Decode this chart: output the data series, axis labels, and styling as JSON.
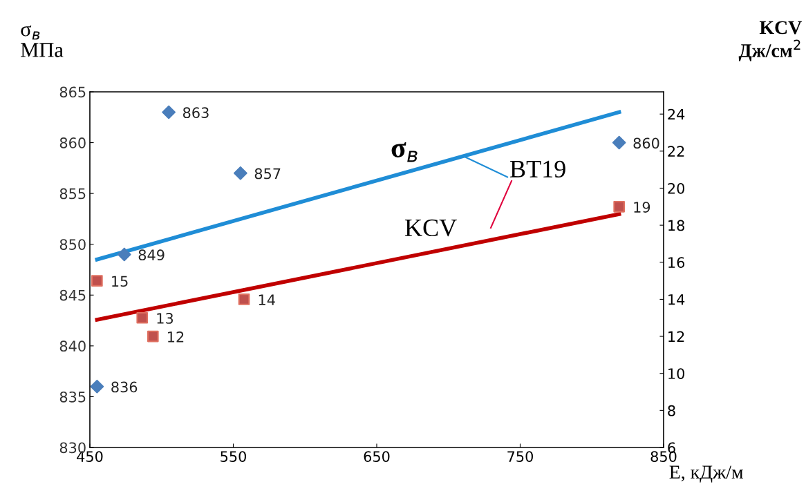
{
  "chart_data": {
    "type": "scatter",
    "xlabel": "E, кДж/м",
    "ylabel": "σ$_{в}$\nМПа",
    "y2label": "KCV\nДж/см$^{2}$",
    "xlim": [
      450,
      850
    ],
    "xticks": [
      450,
      550,
      650,
      750,
      850
    ],
    "ylim": [
      830,
      865
    ],
    "yticks": [
      830,
      835,
      840,
      845,
      850,
      855,
      860,
      865
    ],
    "y2lim": [
      6,
      25.2
    ],
    "y2ticks": [
      6,
      8,
      10,
      12,
      14,
      16,
      18,
      20,
      22,
      24
    ],
    "grid": false,
    "series": [
      {
        "marker": "diamond",
        "color": "#4a7ebb",
        "x": [
          455,
          474,
          505,
          555,
          819
        ],
        "values": [
          836,
          849,
          863,
          857,
          860
        ],
        "value_labels": [
          "836",
          "849",
          "863",
          "857",
          "860"
        ]
      },
      {
        "marker": "square",
        "color": "#c0504d",
        "axis": "y2",
        "x": [
          455,
          486.5,
          494,
          557.5,
          819
        ],
        "values": [
          15,
          13,
          12,
          14,
          19
        ],
        "value_labels": [
          "15",
          "13",
          "12",
          "14",
          "19"
        ]
      },
      {
        "type": "line",
        "marker": "none",
        "color": "#1f8dd6",
        "x": [
          455,
          819
        ],
        "values": [
          848.5,
          863
        ]
      },
      {
        "type": "line",
        "marker": "none",
        "color": "#c00000",
        "axis": "y2",
        "x": [
          455,
          819
        ],
        "values": [
          12.9,
          18.6
        ]
      }
    ],
    "annotations": [
      "σ$_{в}$",
      "KCV",
      {
        "text": "BT19",
        "x": 710,
        "y": 858.7
      }
    ]
  }
}
